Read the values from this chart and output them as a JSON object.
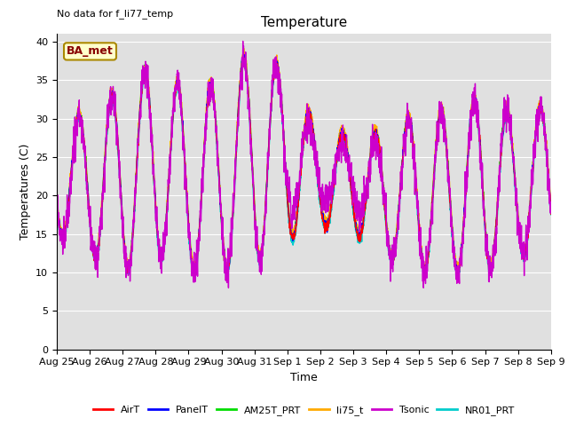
{
  "title": "Temperature",
  "xlabel": "Time",
  "ylabel": "Temperatures (C)",
  "note": "No data for f_li77_temp",
  "legend_label": "BA_met",
  "ylim": [
    0,
    41
  ],
  "yticks": [
    0,
    5,
    10,
    15,
    20,
    25,
    30,
    35,
    40
  ],
  "series": {
    "AirT": {
      "color": "#ff0000",
      "lw": 1.0
    },
    "PanelT": {
      "color": "#0000ff",
      "lw": 1.0
    },
    "AM25T_PRT": {
      "color": "#00dd00",
      "lw": 1.0
    },
    "li75_t": {
      "color": "#ffaa00",
      "lw": 1.0
    },
    "Tsonic": {
      "color": "#cc00cc",
      "lw": 1.0
    },
    "NR01_PRT": {
      "color": "#00cccc",
      "lw": 1.2
    }
  },
  "bg_color": "#e0e0e0",
  "fig_bg": "#ffffff",
  "xtick_labels": [
    "Aug 25",
    "Aug 26",
    "Aug 27",
    "Aug 28",
    "Aug 29",
    "Aug 30",
    "Aug 31",
    "Sep 1",
    "Sep 2",
    "Sep 3",
    "Sep 4",
    "Sep 5",
    "Sep 6",
    "Sep 7",
    "Sep 8",
    "Sep 9"
  ]
}
